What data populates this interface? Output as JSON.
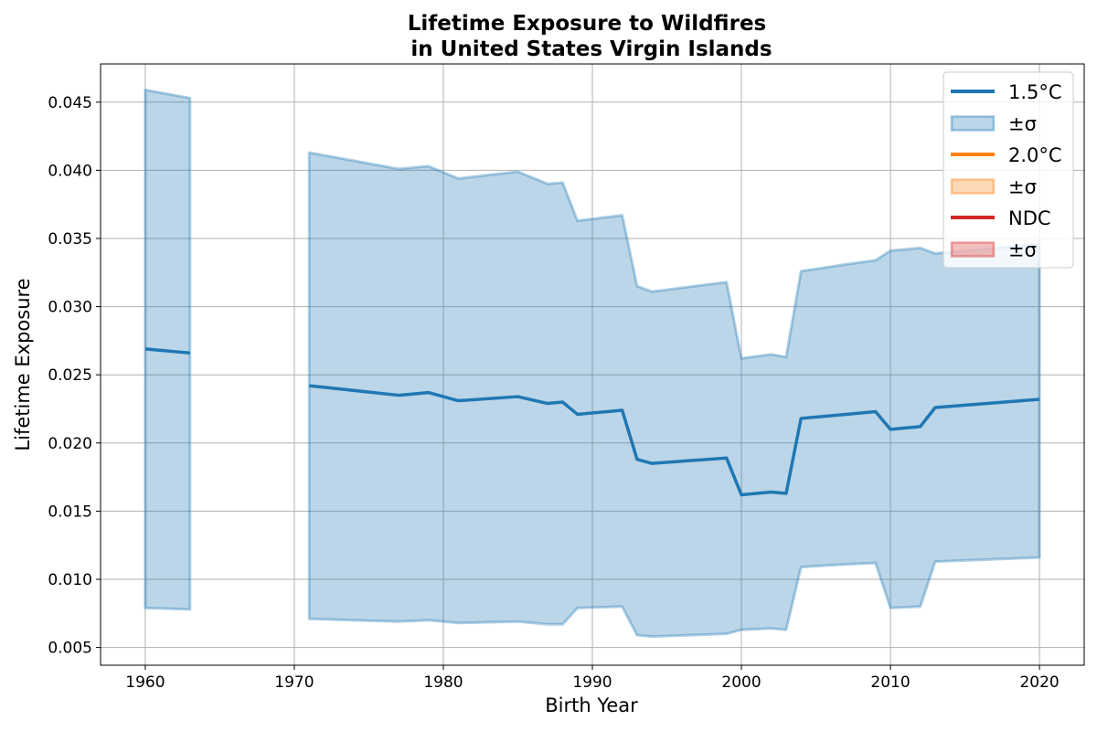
{
  "chart_data": {
    "type": "line",
    "title_line1": "Lifetime Exposure to Wildfires",
    "title_line2": "in United States Virgin Islands",
    "xlabel": "Birth Year",
    "ylabel": "Lifetime Exposure",
    "xlim": [
      1957,
      2023
    ],
    "ylim": [
      0.0037,
      0.0478
    ],
    "x_ticks": [
      1960,
      1970,
      1980,
      1990,
      2000,
      2010,
      2020
    ],
    "y_ticks": [
      0.005,
      0.01,
      0.015,
      0.02,
      0.025,
      0.03,
      0.035,
      0.04,
      0.045
    ],
    "y_tick_labels": [
      "0.005",
      "0.010",
      "0.015",
      "0.020",
      "0.025",
      "0.030",
      "0.035",
      "0.040",
      "0.045"
    ],
    "grid": true,
    "legend_position": "top-right",
    "legend": [
      {
        "label": "1.5°C",
        "kind": "line",
        "color": "#1f77b4"
      },
      {
        "label": "±σ",
        "kind": "band",
        "color": "#1f77b4"
      },
      {
        "label": "2.0°C",
        "kind": "line",
        "color": "#ff7f0e"
      },
      {
        "label": "±σ",
        "kind": "band",
        "color": "#ff7f0e"
      },
      {
        "label": "NDC",
        "kind": "line",
        "color": "#d62728"
      },
      {
        "label": "±σ",
        "kind": "band",
        "color": "#d62728"
      }
    ],
    "series": [
      {
        "name": "1.5°C",
        "color": "#1f77b4",
        "segments": [
          {
            "x": [
              1960,
              1963
            ],
            "mean": [
              0.0269,
              0.0266
            ],
            "upper": [
              0.0459,
              0.0453
            ],
            "lower": [
              0.0079,
              0.0078
            ]
          },
          {
            "x": [
              1971,
              1977,
              1979,
              1981,
              1985,
              1987,
              1988,
              1989,
              1992,
              1993,
              1994,
              1999,
              2000,
              2002,
              2003,
              2004,
              2007,
              2009,
              2010,
              2012,
              2013,
              2020
            ],
            "mean": [
              0.0242,
              0.0235,
              0.0237,
              0.0231,
              0.0234,
              0.0229,
              0.023,
              0.0221,
              0.0224,
              0.0188,
              0.0185,
              0.0189,
              0.0162,
              0.0164,
              0.0163,
              0.0218,
              0.0221,
              0.0223,
              0.021,
              0.0212,
              0.0226,
              0.0232
            ],
            "upper": [
              0.0413,
              0.0401,
              0.0403,
              0.0394,
              0.0399,
              0.039,
              0.0391,
              0.0363,
              0.0367,
              0.0315,
              0.0311,
              0.0318,
              0.0262,
              0.0265,
              0.0263,
              0.0326,
              0.0331,
              0.0334,
              0.0341,
              0.0343,
              0.0339,
              0.0346
            ],
            "lower": [
              0.0071,
              0.0069,
              0.007,
              0.0068,
              0.0069,
              0.0067,
              0.0067,
              0.0079,
              0.008,
              0.0059,
              0.0058,
              0.006,
              0.0063,
              0.0064,
              0.0063,
              0.0109,
              0.0111,
              0.0112,
              0.0079,
              0.008,
              0.0113,
              0.0116
            ]
          }
        ]
      }
    ]
  }
}
